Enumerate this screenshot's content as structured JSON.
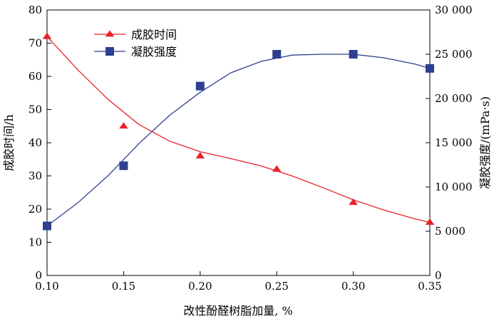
{
  "chart_data": {
    "type": "line",
    "xlabel": "改性酚醛树脂加量, %",
    "ylabel": "成胶时间/h",
    "y2label": "凝胶强度/(mPa·s)",
    "xlim": [
      0.1,
      0.35
    ],
    "ylim": [
      0,
      80
    ],
    "y2lim": [
      0,
      30000
    ],
    "xticks": [
      "0.10",
      "0.15",
      "0.20",
      "0.25",
      "0.30",
      "0.35"
    ],
    "yticks": [
      "0",
      "10",
      "20",
      "30",
      "40",
      "50",
      "60",
      "70",
      "80"
    ],
    "y2ticks": [
      "0",
      "5 000",
      "10 000",
      "15 000",
      "20 000",
      "25 000",
      "30 000"
    ],
    "grid": false,
    "legend_position": "top-left",
    "series": [
      {
        "name": "成胶时间",
        "axis": "left",
        "color": "#e8222a",
        "marker": "triangle",
        "x": [
          0.1,
          0.15,
          0.2,
          0.25,
          0.3,
          0.35
        ],
        "y": [
          72,
          45,
          36,
          32,
          22,
          16
        ],
        "curve_x": [
          0.1,
          0.12,
          0.14,
          0.16,
          0.18,
          0.2,
          0.22,
          0.24,
          0.26,
          0.28,
          0.3,
          0.32,
          0.34,
          0.35
        ],
        "curve_y": [
          72,
          62,
          53,
          45.5,
          40.5,
          37.3,
          35.2,
          33,
          30,
          26.5,
          22.8,
          19.7,
          17.1,
          16
        ]
      },
      {
        "name": "凝胶强度",
        "axis": "right",
        "color": "#2e3f8f",
        "marker": "square",
        "x": [
          0.1,
          0.15,
          0.2,
          0.25,
          0.3,
          0.35
        ],
        "y": [
          5600,
          12400,
          21400,
          25000,
          25000,
          23400
        ],
        "curve_x": [
          0.1,
          0.12,
          0.14,
          0.16,
          0.18,
          0.2,
          0.22,
          0.24,
          0.26,
          0.28,
          0.3,
          0.32,
          0.34,
          0.35
        ],
        "curve_y": [
          5600,
          8200,
          11300,
          14900,
          18100,
          20700,
          22900,
          24200,
          24900,
          25000,
          25000,
          24600,
          23900,
          23400
        ]
      }
    ]
  }
}
